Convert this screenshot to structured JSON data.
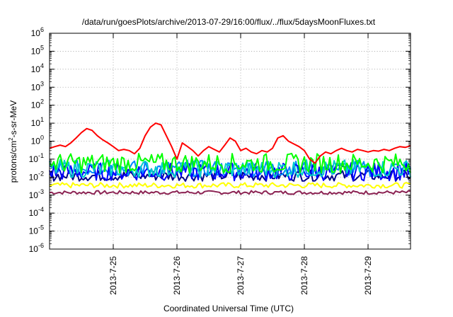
{
  "chart_data": {
    "type": "line",
    "title": "/data/run/goesPlots/archive/2013-07-29/16:00/flux/../flux/5daysMoonFluxes.txt",
    "xlabel": "Coordinated Universal Time (UTC)",
    "ylabel": {
      "pre": "protons/cm",
      "sup": "2",
      "post": "-s-sr-MeV"
    },
    "yscale": "log",
    "ylim": [
      1e-06,
      1000000.0
    ],
    "xlim": [
      "2013-07-24T00:00",
      "2013-07-29T16:00"
    ],
    "grid": true,
    "ytick_exponents": [
      -6,
      -5,
      -4,
      -3,
      -2,
      -1,
      0,
      1,
      2,
      3,
      4,
      5,
      6
    ],
    "xticks": [
      {
        "label": "2013-7-25",
        "value": "2013-07-25T00:00"
      },
      {
        "label": "2013-7-26",
        "value": "2013-07-26T00:00"
      },
      {
        "label": "2013-7-27",
        "value": "2013-07-27T00:00"
      },
      {
        "label": "2013-7-28",
        "value": "2013-07-28T00:00"
      },
      {
        "label": "2013-7-29",
        "value": "2013-07-29T00:00"
      }
    ],
    "series": [
      {
        "color": "#ff0000",
        "points": [
          [
            "2013-07-24T00:00",
            0.4
          ],
          [
            "2013-07-24T02:00",
            0.5
          ],
          [
            "2013-07-24T04:00",
            0.6
          ],
          [
            "2013-07-24T06:00",
            0.5
          ],
          [
            "2013-07-24T08:00",
            0.8
          ],
          [
            "2013-07-24T10:00",
            1.5
          ],
          [
            "2013-07-24T12:00",
            3.0
          ],
          [
            "2013-07-24T14:00",
            5.0
          ],
          [
            "2013-07-24T16:00",
            4.0
          ],
          [
            "2013-07-24T18:00",
            2.0
          ],
          [
            "2013-07-24T20:00",
            1.2
          ],
          [
            "2013-07-24T22:00",
            0.8
          ],
          [
            "2013-07-25T00:00",
            0.5
          ],
          [
            "2013-07-25T02:00",
            0.3
          ],
          [
            "2013-07-25T04:00",
            0.35
          ],
          [
            "2013-07-25T06:00",
            0.3
          ],
          [
            "2013-07-25T08:00",
            0.2
          ],
          [
            "2013-07-25T10:00",
            0.4
          ],
          [
            "2013-07-25T12:00",
            2.0
          ],
          [
            "2013-07-25T14:00",
            6.0
          ],
          [
            "2013-07-25T16:00",
            10.0
          ],
          [
            "2013-07-25T18:00",
            8.0
          ],
          [
            "2013-07-25T20:00",
            2.0
          ],
          [
            "2013-07-25T22:00",
            0.5
          ],
          [
            "2013-07-26T00:00",
            0.1
          ],
          [
            "2013-07-26T02:00",
            0.8
          ],
          [
            "2013-07-26T04:00",
            0.5
          ],
          [
            "2013-07-26T06:00",
            0.3
          ],
          [
            "2013-07-26T08:00",
            0.15
          ],
          [
            "2013-07-26T10:00",
            0.3
          ],
          [
            "2013-07-26T12:00",
            0.5
          ],
          [
            "2013-07-26T14:00",
            0.35
          ],
          [
            "2013-07-26T16:00",
            0.25
          ],
          [
            "2013-07-26T18:00",
            0.6
          ],
          [
            "2013-07-26T20:00",
            1.5
          ],
          [
            "2013-07-26T22:00",
            1.0
          ],
          [
            "2013-07-27T00:00",
            0.3
          ],
          [
            "2013-07-27T02:00",
            0.4
          ],
          [
            "2013-07-27T04:00",
            0.25
          ],
          [
            "2013-07-27T06:00",
            0.2
          ],
          [
            "2013-07-27T08:00",
            0.3
          ],
          [
            "2013-07-27T10:00",
            0.25
          ],
          [
            "2013-07-27T12:00",
            0.4
          ],
          [
            "2013-07-27T14:00",
            1.5
          ],
          [
            "2013-07-27T16:00",
            2.0
          ],
          [
            "2013-07-27T18:00",
            1.0
          ],
          [
            "2013-07-27T20:00",
            0.7
          ],
          [
            "2013-07-27T22:00",
            0.5
          ],
          [
            "2013-07-28T00:00",
            0.3
          ],
          [
            "2013-07-28T02:00",
            0.1
          ],
          [
            "2013-07-28T04:00",
            0.06
          ],
          [
            "2013-07-28T06:00",
            0.15
          ],
          [
            "2013-07-28T08:00",
            0.25
          ],
          [
            "2013-07-28T10:00",
            0.2
          ],
          [
            "2013-07-28T12:00",
            0.3
          ],
          [
            "2013-07-28T14:00",
            0.4
          ],
          [
            "2013-07-28T16:00",
            0.3
          ],
          [
            "2013-07-28T18:00",
            0.25
          ],
          [
            "2013-07-28T20:00",
            0.35
          ],
          [
            "2013-07-28T22:00",
            0.3
          ],
          [
            "2013-07-29T00:00",
            0.25
          ],
          [
            "2013-07-29T02:00",
            0.3
          ],
          [
            "2013-07-29T04:00",
            0.28
          ],
          [
            "2013-07-29T06:00",
            0.35
          ],
          [
            "2013-07-29T08:00",
            0.3
          ],
          [
            "2013-07-29T10:00",
            0.4
          ],
          [
            "2013-07-29T12:00",
            0.5
          ],
          [
            "2013-07-29T14:00",
            0.45
          ],
          [
            "2013-07-29T16:00",
            0.55
          ]
        ]
      },
      {
        "color": "#00ff00",
        "base": 0.06,
        "jitter": 0.55
      },
      {
        "color": "#00cccc",
        "base": 0.03,
        "jitter": 0.5
      },
      {
        "color": "#0000ff",
        "base": 0.02,
        "jitter": 0.5
      },
      {
        "color": "#0088ff",
        "base": 0.03,
        "jitter": 0.45
      },
      {
        "color": "#00008b",
        "base": 0.012,
        "jitter": 0.3
      },
      {
        "color": "#ffff00",
        "base": 0.0035,
        "jitter": 0.15
      },
      {
        "color": "#8b2252",
        "base": 0.0014,
        "jitter": 0.1
      }
    ]
  }
}
